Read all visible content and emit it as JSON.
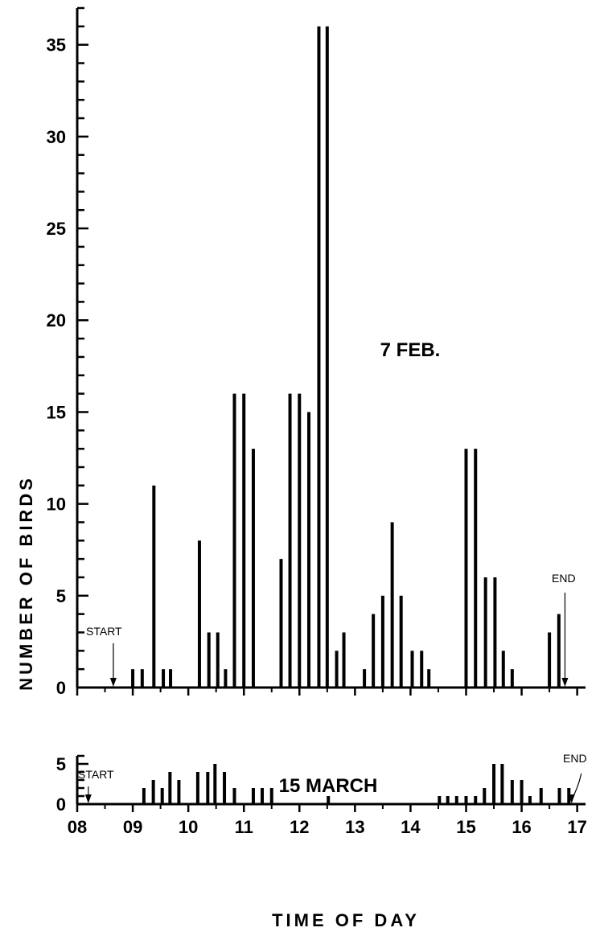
{
  "chart_data": [
    {
      "type": "bar",
      "panel_label": "7 FEB.",
      "ylim": [
        0,
        37
      ],
      "yticks": [
        0,
        5,
        10,
        15,
        20,
        25,
        30,
        35
      ],
      "annotations": {
        "start": "START",
        "start_x": 8.65,
        "end": "END",
        "end_x": 16.78
      },
      "x": [
        9.0,
        9.17,
        9.38,
        9.55,
        9.68,
        10.2,
        10.37,
        10.53,
        10.67,
        10.83,
        11.0,
        11.17,
        11.67,
        11.83,
        12.0,
        12.17,
        12.35,
        12.5,
        12.67,
        12.8,
        13.17,
        13.33,
        13.5,
        13.67,
        13.83,
        14.03,
        14.2,
        14.33,
        15.0,
        15.17,
        15.35,
        15.52,
        15.67,
        15.83,
        16.5,
        16.67
      ],
      "values": [
        1,
        1,
        11,
        1,
        1,
        8,
        3,
        3,
        1,
        16,
        16,
        13,
        7,
        16,
        16,
        15,
        36,
        36,
        2,
        3,
        1,
        4,
        5,
        9,
        5,
        2,
        2,
        1,
        13,
        13,
        6,
        6,
        2,
        1,
        3,
        4
      ]
    },
    {
      "type": "bar",
      "panel_label": "15 MARCH",
      "ylim": [
        0,
        6
      ],
      "yticks": [
        0,
        5
      ],
      "annotations": {
        "start": "START",
        "start_x": 8.2,
        "end": "END",
        "end_x": 16.9
      },
      "x": [
        9.2,
        9.37,
        9.53,
        9.67,
        9.83,
        10.17,
        10.35,
        10.48,
        10.65,
        10.83,
        11.17,
        11.33,
        11.5,
        12.52,
        14.52,
        14.67,
        14.83,
        15.0,
        15.17,
        15.33,
        15.5,
        15.65,
        15.83,
        16.0,
        16.15,
        16.35,
        16.68,
        16.85
      ],
      "values": [
        2,
        3,
        2,
        4,
        3,
        4,
        4,
        5,
        4,
        2,
        2,
        2,
        2,
        1,
        1,
        1,
        1,
        1,
        1,
        2,
        5,
        5,
        3,
        3,
        1,
        2,
        2,
        2
      ]
    }
  ],
  "x_axis": {
    "title": "TIME OF DAY",
    "ticks": [
      8,
      9,
      10,
      11,
      12,
      13,
      14,
      15,
      16,
      17
    ],
    "tick_labels": [
      "08",
      "09",
      "10",
      "11",
      "12",
      "13",
      "14",
      "15",
      "16",
      "17"
    ]
  },
  "y_axis": {
    "title": "NUMBER OF BIRDS"
  }
}
